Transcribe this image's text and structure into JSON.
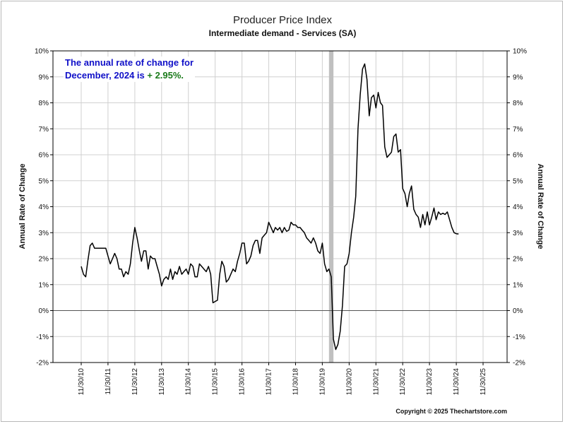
{
  "chart_data": {
    "type": "line",
    "title": "Producer Price Index",
    "subtitle": "Intermediate demand - Services (SA)",
    "ylabel": "Annual Rate of Change",
    "ylabel_right": "Annual Rate of Change",
    "ylim": [
      -2,
      10
    ],
    "y_ticks": [
      "-2%",
      "-1%",
      "0%",
      "1%",
      "2%",
      "3%",
      "4%",
      "5%",
      "6%",
      "7%",
      "8%",
      "9%",
      "10%"
    ],
    "x_ticks": [
      "11/30/10",
      "11/30/11",
      "11/30/12",
      "11/30/13",
      "11/30/14",
      "11/30/15",
      "11/30/16",
      "11/30/17",
      "11/30/18",
      "11/30/19",
      "11/30/20",
      "11/30/21",
      "11/30/22",
      "11/30/23",
      "11/30/24",
      "11/30/25"
    ],
    "grid": true,
    "recession_shading": {
      "from": "2020-02-29",
      "to": "2020-04-30",
      "color": "#c0c0c0"
    },
    "series": [
      {
        "color": "#000000",
        "points": [
          [
            "2010-11-30",
            1.7
          ],
          [
            "2010-12-31",
            1.4
          ],
          [
            "2011-01-31",
            1.3
          ],
          [
            "2011-02-28",
            1.9
          ],
          [
            "2011-03-31",
            2.5
          ],
          [
            "2011-04-30",
            2.6
          ],
          [
            "2011-05-31",
            2.4
          ],
          [
            "2011-06-30",
            2.4
          ],
          [
            "2011-07-31",
            2.4
          ],
          [
            "2011-08-31",
            2.4
          ],
          [
            "2011-09-30",
            2.4
          ],
          [
            "2011-10-31",
            2.4
          ],
          [
            "2011-11-30",
            2.1
          ],
          [
            "2011-12-31",
            1.8
          ],
          [
            "2012-01-31",
            2.0
          ],
          [
            "2012-02-29",
            2.2
          ],
          [
            "2012-03-31",
            2.0
          ],
          [
            "2012-04-30",
            1.6
          ],
          [
            "2012-05-31",
            1.6
          ],
          [
            "2012-06-30",
            1.3
          ],
          [
            "2012-07-31",
            1.5
          ],
          [
            "2012-08-31",
            1.4
          ],
          [
            "2012-09-30",
            1.8
          ],
          [
            "2012-10-31",
            2.6
          ],
          [
            "2012-11-30",
            3.2
          ],
          [
            "2012-12-31",
            2.8
          ],
          [
            "2013-01-31",
            2.3
          ],
          [
            "2013-02-28",
            1.9
          ],
          [
            "2013-03-31",
            2.3
          ],
          [
            "2013-04-30",
            2.3
          ],
          [
            "2013-05-31",
            1.6
          ],
          [
            "2013-06-30",
            2.1
          ],
          [
            "2013-07-31",
            2.0
          ],
          [
            "2013-08-31",
            2.0
          ],
          [
            "2013-09-30",
            1.7
          ],
          [
            "2013-10-31",
            1.4
          ],
          [
            "2013-11-30",
            0.95
          ],
          [
            "2013-12-31",
            1.2
          ],
          [
            "2014-01-31",
            1.3
          ],
          [
            "2014-02-28",
            1.2
          ],
          [
            "2014-03-31",
            1.6
          ],
          [
            "2014-04-30",
            1.2
          ],
          [
            "2014-05-31",
            1.5
          ],
          [
            "2014-06-30",
            1.4
          ],
          [
            "2014-07-31",
            1.7
          ],
          [
            "2014-08-31",
            1.4
          ],
          [
            "2014-09-30",
            1.5
          ],
          [
            "2014-10-31",
            1.6
          ],
          [
            "2014-11-30",
            1.4
          ],
          [
            "2014-12-31",
            1.8
          ],
          [
            "2015-01-31",
            1.7
          ],
          [
            "2015-02-28",
            1.3
          ],
          [
            "2015-03-31",
            1.3
          ],
          [
            "2015-04-30",
            1.8
          ],
          [
            "2015-05-31",
            1.7
          ],
          [
            "2015-06-30",
            1.6
          ],
          [
            "2015-07-31",
            1.5
          ],
          [
            "2015-08-31",
            1.7
          ],
          [
            "2015-09-30",
            1.4
          ],
          [
            "2015-10-31",
            0.3
          ],
          [
            "2015-11-30",
            0.35
          ],
          [
            "2015-12-31",
            0.4
          ],
          [
            "2016-01-31",
            1.4
          ],
          [
            "2016-02-29",
            1.9
          ],
          [
            "2016-03-31",
            1.7
          ],
          [
            "2016-04-30",
            1.1
          ],
          [
            "2016-05-31",
            1.2
          ],
          [
            "2016-06-30",
            1.4
          ],
          [
            "2016-07-31",
            1.6
          ],
          [
            "2016-08-31",
            1.5
          ],
          [
            "2016-09-30",
            1.9
          ],
          [
            "2016-10-31",
            2.2
          ],
          [
            "2016-11-30",
            2.6
          ],
          [
            "2016-12-31",
            2.6
          ],
          [
            "2017-01-31",
            1.8
          ],
          [
            "2017-02-28",
            1.9
          ],
          [
            "2017-03-31",
            2.1
          ],
          [
            "2017-04-30",
            2.5
          ],
          [
            "2017-05-31",
            2.7
          ],
          [
            "2017-06-30",
            2.7
          ],
          [
            "2017-07-31",
            2.2
          ],
          [
            "2017-08-31",
            2.8
          ],
          [
            "2017-09-30",
            2.9
          ],
          [
            "2017-10-31",
            3.0
          ],
          [
            "2017-11-30",
            3.4
          ],
          [
            "2017-12-31",
            3.2
          ],
          [
            "2018-01-31",
            3.0
          ],
          [
            "2018-02-28",
            3.2
          ],
          [
            "2018-03-31",
            3.1
          ],
          [
            "2018-04-30",
            3.2
          ],
          [
            "2018-05-31",
            3.0
          ],
          [
            "2018-06-30",
            3.2
          ],
          [
            "2018-07-31",
            3.05
          ],
          [
            "2018-08-31",
            3.1
          ],
          [
            "2018-09-30",
            3.4
          ],
          [
            "2018-10-31",
            3.3
          ],
          [
            "2018-11-30",
            3.3
          ],
          [
            "2018-12-31",
            3.2
          ],
          [
            "2019-01-31",
            3.2
          ],
          [
            "2019-02-28",
            3.1
          ],
          [
            "2019-03-31",
            3.0
          ],
          [
            "2019-04-30",
            2.8
          ],
          [
            "2019-05-31",
            2.7
          ],
          [
            "2019-06-30",
            2.6
          ],
          [
            "2019-07-31",
            2.8
          ],
          [
            "2019-08-31",
            2.6
          ],
          [
            "2019-09-30",
            2.3
          ],
          [
            "2019-10-31",
            2.2
          ],
          [
            "2019-11-30",
            2.6
          ],
          [
            "2019-12-31",
            1.8
          ],
          [
            "2020-01-31",
            1.5
          ],
          [
            "2020-02-29",
            1.6
          ],
          [
            "2020-03-31",
            1.3
          ],
          [
            "2020-04-30",
            -1.1
          ],
          [
            "2020-05-31",
            -1.5
          ],
          [
            "2020-06-30",
            -1.3
          ],
          [
            "2020-07-31",
            -0.8
          ],
          [
            "2020-08-31",
            0.2
          ],
          [
            "2020-09-30",
            1.7
          ],
          [
            "2020-10-31",
            1.8
          ],
          [
            "2020-11-30",
            2.2
          ],
          [
            "2020-12-31",
            3.0
          ],
          [
            "2021-01-31",
            3.6
          ],
          [
            "2021-02-28",
            4.4
          ],
          [
            "2021-03-31",
            7.0
          ],
          [
            "2021-04-30",
            8.3
          ],
          [
            "2021-05-31",
            9.3
          ],
          [
            "2021-06-30",
            9.5
          ],
          [
            "2021-07-31",
            8.9
          ],
          [
            "2021-08-31",
            7.5
          ],
          [
            "2021-09-30",
            8.2
          ],
          [
            "2021-10-31",
            8.3
          ],
          [
            "2021-11-30",
            7.8
          ],
          [
            "2021-12-31",
            8.4
          ],
          [
            "2022-01-31",
            8.0
          ],
          [
            "2022-02-28",
            7.9
          ],
          [
            "2022-03-31",
            6.3
          ],
          [
            "2022-04-30",
            5.9
          ],
          [
            "2022-05-31",
            6.0
          ],
          [
            "2022-06-30",
            6.1
          ],
          [
            "2022-07-31",
            6.7
          ],
          [
            "2022-08-31",
            6.8
          ],
          [
            "2022-09-30",
            6.1
          ],
          [
            "2022-10-31",
            6.2
          ],
          [
            "2022-11-30",
            4.7
          ],
          [
            "2022-12-31",
            4.5
          ],
          [
            "2023-01-31",
            4.0
          ],
          [
            "2023-02-28",
            4.5
          ],
          [
            "2023-03-31",
            4.8
          ],
          [
            "2023-04-30",
            3.9
          ],
          [
            "2023-05-31",
            3.7
          ],
          [
            "2023-06-30",
            3.6
          ],
          [
            "2023-07-31",
            3.2
          ],
          [
            "2023-08-31",
            3.7
          ],
          [
            "2023-09-30",
            3.3
          ],
          [
            "2023-10-31",
            3.8
          ],
          [
            "2023-11-30",
            3.3
          ],
          [
            "2023-12-31",
            3.6
          ],
          [
            "2024-01-31",
            3.95
          ],
          [
            "2024-02-29",
            3.5
          ],
          [
            "2024-03-31",
            3.8
          ],
          [
            "2024-04-30",
            3.7
          ],
          [
            "2024-05-31",
            3.75
          ],
          [
            "2024-06-30",
            3.7
          ],
          [
            "2024-07-31",
            3.8
          ],
          [
            "2024-08-31",
            3.5
          ],
          [
            "2024-09-30",
            3.2
          ],
          [
            "2024-10-31",
            3.0
          ],
          [
            "2024-11-30",
            2.96
          ],
          [
            "2024-12-31",
            2.95
          ]
        ]
      }
    ]
  },
  "annotation": {
    "line1": "The annual rate of change for",
    "line2_prefix": "December, 2024 is ",
    "line2_value": "+ 2.95%."
  },
  "credit": "Copyright © 2025 Thechartstore.com"
}
